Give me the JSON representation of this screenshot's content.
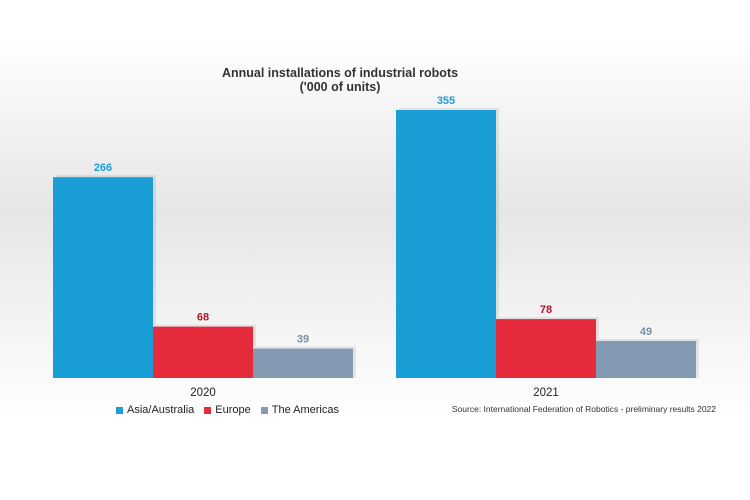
{
  "chart_data": {
    "type": "bar",
    "title": "Annual installations of industrial robots",
    "subtitle": "('000 of units)",
    "categories": [
      "2020",
      "2021"
    ],
    "series": [
      {
        "name": "Asia/Australia",
        "values": [
          266,
          355
        ],
        "color": "#1a9ed6",
        "label_color": "#1a9ed6"
      },
      {
        "name": "Europe",
        "values": [
          68,
          78
        ],
        "color": "#e42a3b",
        "label_color": "#b2172b"
      },
      {
        "name": "The Americas",
        "values": [
          39,
          49
        ],
        "color": "#8499b2",
        "label_color": "#7a8ea6"
      }
    ],
    "ylim": [
      0,
      360
    ],
    "grid": false,
    "legend_position": "bottom-left",
    "source": "Source: International Federation of Robotics - preliminary results 2022"
  }
}
